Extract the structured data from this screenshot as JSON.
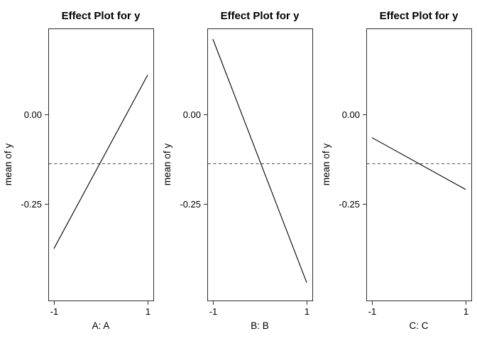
{
  "figure": {
    "background": "#FFFFFF",
    "frame_color": "#2D2D2D",
    "text_color": "#000000"
  },
  "chart_data": {
    "type": "line",
    "layout": "three side-by-side effect panels, shared y scale",
    "panels": [
      {
        "title": "Effect Plot for y",
        "xlabel": "A: A",
        "ylabel": "mean of y",
        "x": [
          -1,
          1
        ],
        "y": [
          -0.375,
          0.11
        ]
      },
      {
        "title": "Effect Plot for y",
        "xlabel": "B: B",
        "ylabel": "mean of y",
        "x": [
          -1,
          1
        ],
        "y": [
          0.21,
          -0.47
        ]
      },
      {
        "title": "Effect Plot for y",
        "xlabel": "C: C",
        "ylabel": "mean of y",
        "x": [
          -1,
          1
        ],
        "y": [
          -0.065,
          -0.21
        ]
      }
    ],
    "reference_line": {
      "value": -0.137,
      "style": "dashed",
      "color": "#3E5268",
      "meaning": "grand mean of y"
    },
    "line_color": "#000000",
    "yticks": [
      0,
      -0.25
    ],
    "ytick_labels": [
      "0.00",
      "-0.25"
    ],
    "xticks": [
      -1,
      1
    ],
    "xtick_labels": [
      "-1",
      "1"
    ],
    "ylim": [
      -0.52,
      0.24
    ],
    "xlim": [
      -1.12,
      1.12
    ],
    "grid": false,
    "legend": false
  }
}
